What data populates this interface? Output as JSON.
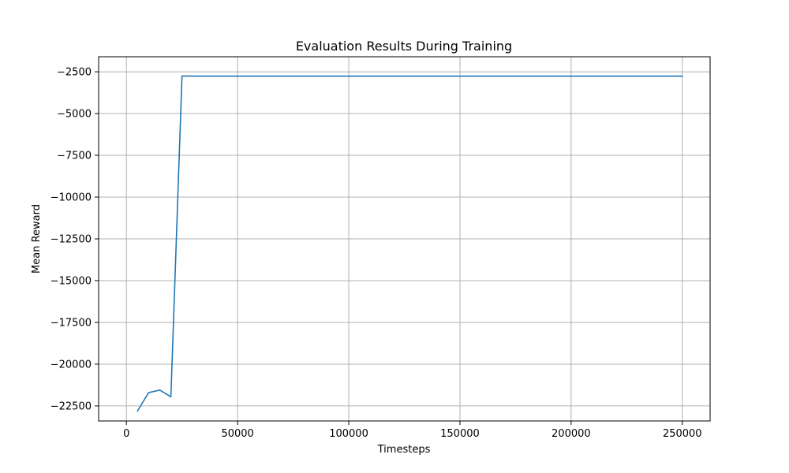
{
  "chart_data": {
    "type": "line",
    "title": "Evaluation Results During Training",
    "xlabel": "Timesteps",
    "ylabel": "Mean Reward",
    "xlim": [
      -12500,
      262500
    ],
    "ylim": [
      -23400,
      -1600
    ],
    "xticks": [
      0,
      50000,
      100000,
      150000,
      200000,
      250000
    ],
    "yticks": [
      -2500,
      -5000,
      -7500,
      -10000,
      -12500,
      -15000,
      -17500,
      -20000,
      -22500
    ],
    "ytick_labels": [
      "−2500",
      "−5000",
      "−7500",
      "−10000",
      "−12500",
      "−15000",
      "−17500",
      "−20000",
      "−22500"
    ],
    "grid": true,
    "line_color": "#1f77b4",
    "grid_color": "#b0b0b0",
    "series": [
      {
        "x": [
          5000,
          10000,
          15000,
          20000,
          25000,
          30000,
          35000,
          40000,
          45000,
          50000,
          55000,
          60000,
          65000,
          70000,
          75000,
          80000,
          85000,
          90000,
          95000,
          100000,
          105000,
          110000,
          115000,
          120000,
          125000,
          130000,
          135000,
          140000,
          145000,
          150000,
          155000,
          160000,
          165000,
          170000,
          175000,
          180000,
          185000,
          190000,
          195000,
          200000,
          205000,
          210000,
          215000,
          220000,
          225000,
          230000,
          235000,
          240000,
          245000,
          250000
        ],
        "y": [
          -22800,
          -21700,
          -21550,
          -21950,
          -2750,
          -2760,
          -2760,
          -2760,
          -2760,
          -2760,
          -2760,
          -2760,
          -2760,
          -2760,
          -2760,
          -2760,
          -2760,
          -2760,
          -2760,
          -2760,
          -2760,
          -2760,
          -2760,
          -2760,
          -2760,
          -2760,
          -2760,
          -2760,
          -2760,
          -2760,
          -2760,
          -2760,
          -2760,
          -2760,
          -2760,
          -2760,
          -2760,
          -2760,
          -2760,
          -2760,
          -2760,
          -2760,
          -2760,
          -2760,
          -2760,
          -2760,
          -2760,
          -2760,
          -2760,
          -2760
        ]
      }
    ]
  }
}
